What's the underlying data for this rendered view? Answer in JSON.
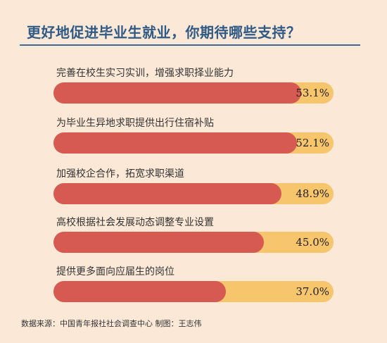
{
  "colors": {
    "background": "#fbe8d7",
    "title": "#2f5a86",
    "bar_fill": "#d65a52",
    "bar_track": "#f6c56c"
  },
  "chart_data": {
    "type": "bar",
    "orientation": "horizontal",
    "title": "更好地促进毕业生就业，你期待哪些支持？",
    "xlim": [
      0,
      60
    ],
    "grid": false,
    "categories": [
      "完善在校生实习实训，增强求职择业能力",
      "为毕业生异地求职提供出行住宿补贴",
      "加强校企合作，拓宽求职渠道",
      "高校根据社会发展动态调整专业设置",
      "提供更多面向应届生的岗位"
    ],
    "values": [
      53.1,
      52.1,
      48.9,
      45.0,
      37.0
    ],
    "value_labels": [
      "53.1%",
      "52.1%",
      "48.9%",
      "45.0%",
      "37.0%"
    ],
    "source": "数据来源：中国青年报社社会调查中心   制图：王志伟"
  }
}
